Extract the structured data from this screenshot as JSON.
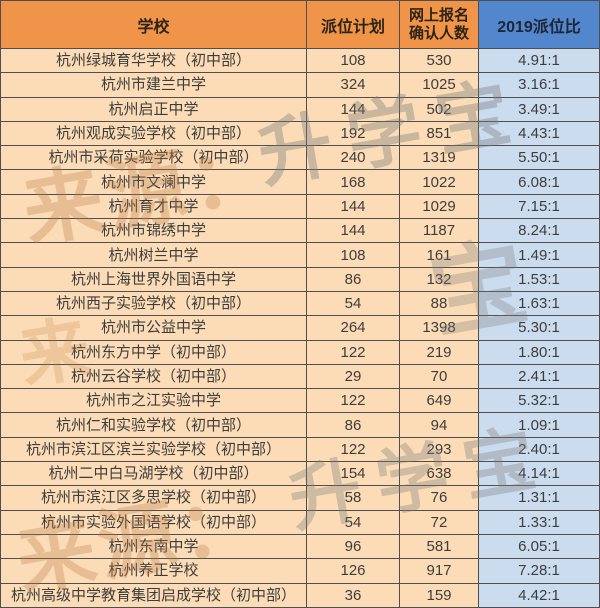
{
  "colors": {
    "header_orange": "#F0944A",
    "header_blue": "#5286CD",
    "cell_peach": "#FBDCB6",
    "cell_blue": "#CBDCEF",
    "border": "#4f4f4f",
    "header_text": "#2e2415",
    "header_blue_text": "#1e2635",
    "cell_text": "#3d3d3d"
  },
  "watermark": {
    "source_label": "来源：",
    "source_char": "来",
    "brand": "升学宝",
    "brand_char": "宝"
  },
  "table": {
    "headers": [
      "学校",
      "派位计划",
      "网上报名\n确认人数",
      "2019派位比"
    ],
    "rows": [
      {
        "school": "杭州绿城育华学校（初中部）",
        "plan": "108",
        "confirmed": "530",
        "ratio": "4.91:1"
      },
      {
        "school": "杭州市建兰中学",
        "plan": "324",
        "confirmed": "1025",
        "ratio": "3.16:1"
      },
      {
        "school": "杭州启正中学",
        "plan": "144",
        "confirmed": "502",
        "ratio": "3.49:1"
      },
      {
        "school": "杭州观成实验学校（初中部）",
        "plan": "192",
        "confirmed": "851",
        "ratio": "4.43:1"
      },
      {
        "school": "杭州市采荷实验学校（初中部）",
        "plan": "240",
        "confirmed": "1319",
        "ratio": "5.50:1"
      },
      {
        "school": "杭州市文澜中学",
        "plan": "168",
        "confirmed": "1022",
        "ratio": "6.08:1"
      },
      {
        "school": "杭州育才中学",
        "plan": "144",
        "confirmed": "1029",
        "ratio": "7.15:1"
      },
      {
        "school": "杭州市锦绣中学",
        "plan": "144",
        "confirmed": "1187",
        "ratio": "8.24:1"
      },
      {
        "school": "杭州树兰中学",
        "plan": "108",
        "confirmed": "161",
        "ratio": "1.49:1"
      },
      {
        "school": "杭州上海世界外国语中学",
        "plan": "86",
        "confirmed": "132",
        "ratio": "1.53:1"
      },
      {
        "school": "杭州西子实验学校（初中部）",
        "plan": "54",
        "confirmed": "88",
        "ratio": "1.63:1"
      },
      {
        "school": "杭州市公益中学",
        "plan": "264",
        "confirmed": "1398",
        "ratio": "5.30:1"
      },
      {
        "school": "杭州东方中学（初中部）",
        "plan": "122",
        "confirmed": "219",
        "ratio": "1.80:1"
      },
      {
        "school": "杭州云谷学校（初中部）",
        "plan": "29",
        "confirmed": "70",
        "ratio": "2.41:1"
      },
      {
        "school": "杭州市之江实验中学",
        "plan": "122",
        "confirmed": "649",
        "ratio": "5.32:1"
      },
      {
        "school": "杭州仁和实验学校（初中部）",
        "plan": "86",
        "confirmed": "94",
        "ratio": "1.09:1"
      },
      {
        "school": "杭州市滨江区滨兰实验学校（初中部）",
        "plan": "122",
        "confirmed": "293",
        "ratio": "2.40:1"
      },
      {
        "school": "杭州二中白马湖学校（初中部）",
        "plan": "154",
        "confirmed": "638",
        "ratio": "4.14:1"
      },
      {
        "school": "杭州市滨江区多思学校（初中部）",
        "plan": "58",
        "confirmed": "76",
        "ratio": "1.31:1"
      },
      {
        "school": "杭州市实验外国语学校（初中部）",
        "plan": "54",
        "confirmed": "72",
        "ratio": "1.33:1"
      },
      {
        "school": "杭州东南中学",
        "plan": "96",
        "confirmed": "581",
        "ratio": "6.05:1"
      },
      {
        "school": "杭州养正学校",
        "plan": "126",
        "confirmed": "917",
        "ratio": "7.28:1"
      },
      {
        "school": "杭州高级中学教育集团启成学校（初中部）",
        "plan": "36",
        "confirmed": "159",
        "ratio": "4.42:1"
      }
    ]
  }
}
